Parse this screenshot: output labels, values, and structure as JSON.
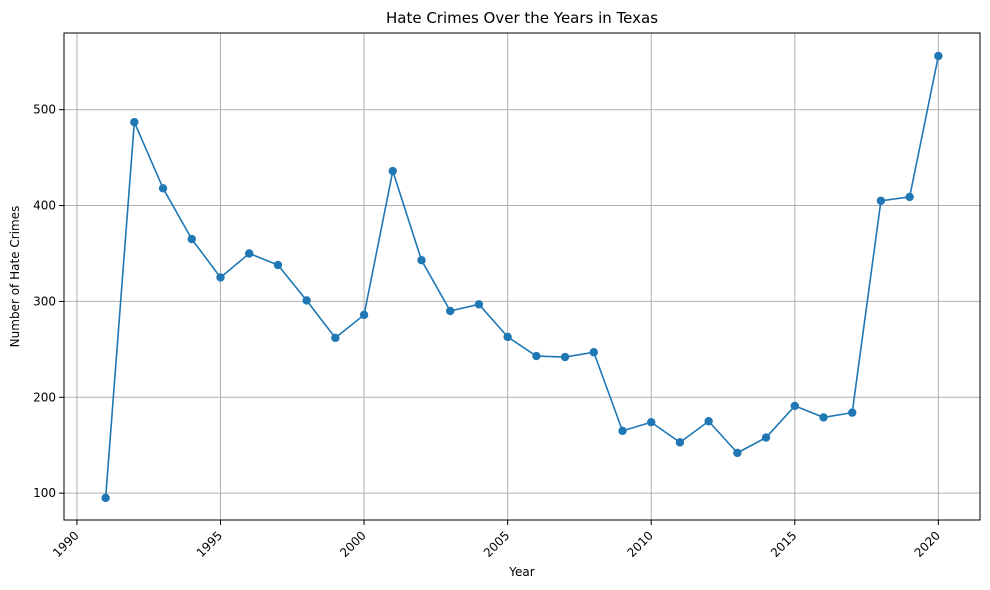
{
  "chart_data": {
    "type": "line",
    "title": "Hate Crimes Over the Years in Texas",
    "xlabel": "Year",
    "ylabel": "Number of Hate Crimes",
    "xlim": [
      1989.55,
      2021.45
    ],
    "ylim": [
      72,
      580
    ],
    "xticks": [
      1990,
      1995,
      2000,
      2005,
      2010,
      2015,
      2020
    ],
    "yticks": [
      100,
      200,
      300,
      400,
      500
    ],
    "grid": true,
    "marker": "circle",
    "line_color": "#1f77b4",
    "series": [
      {
        "name": "",
        "x": [
          1991,
          1992,
          1993,
          1994,
          1995,
          1996,
          1997,
          1998,
          1999,
          2000,
          2001,
          2002,
          2003,
          2004,
          2005,
          2006,
          2007,
          2008,
          2009,
          2010,
          2011,
          2012,
          2013,
          2014,
          2015,
          2016,
          2017,
          2018,
          2019,
          2020
        ],
        "y": [
          95,
          487,
          418,
          365,
          325,
          350,
          338,
          301,
          262,
          286,
          436,
          343,
          290,
          297,
          263,
          243,
          242,
          247,
          165,
          174,
          153,
          175,
          142,
          158,
          191,
          179,
          184,
          405,
          409,
          556
        ]
      }
    ]
  }
}
